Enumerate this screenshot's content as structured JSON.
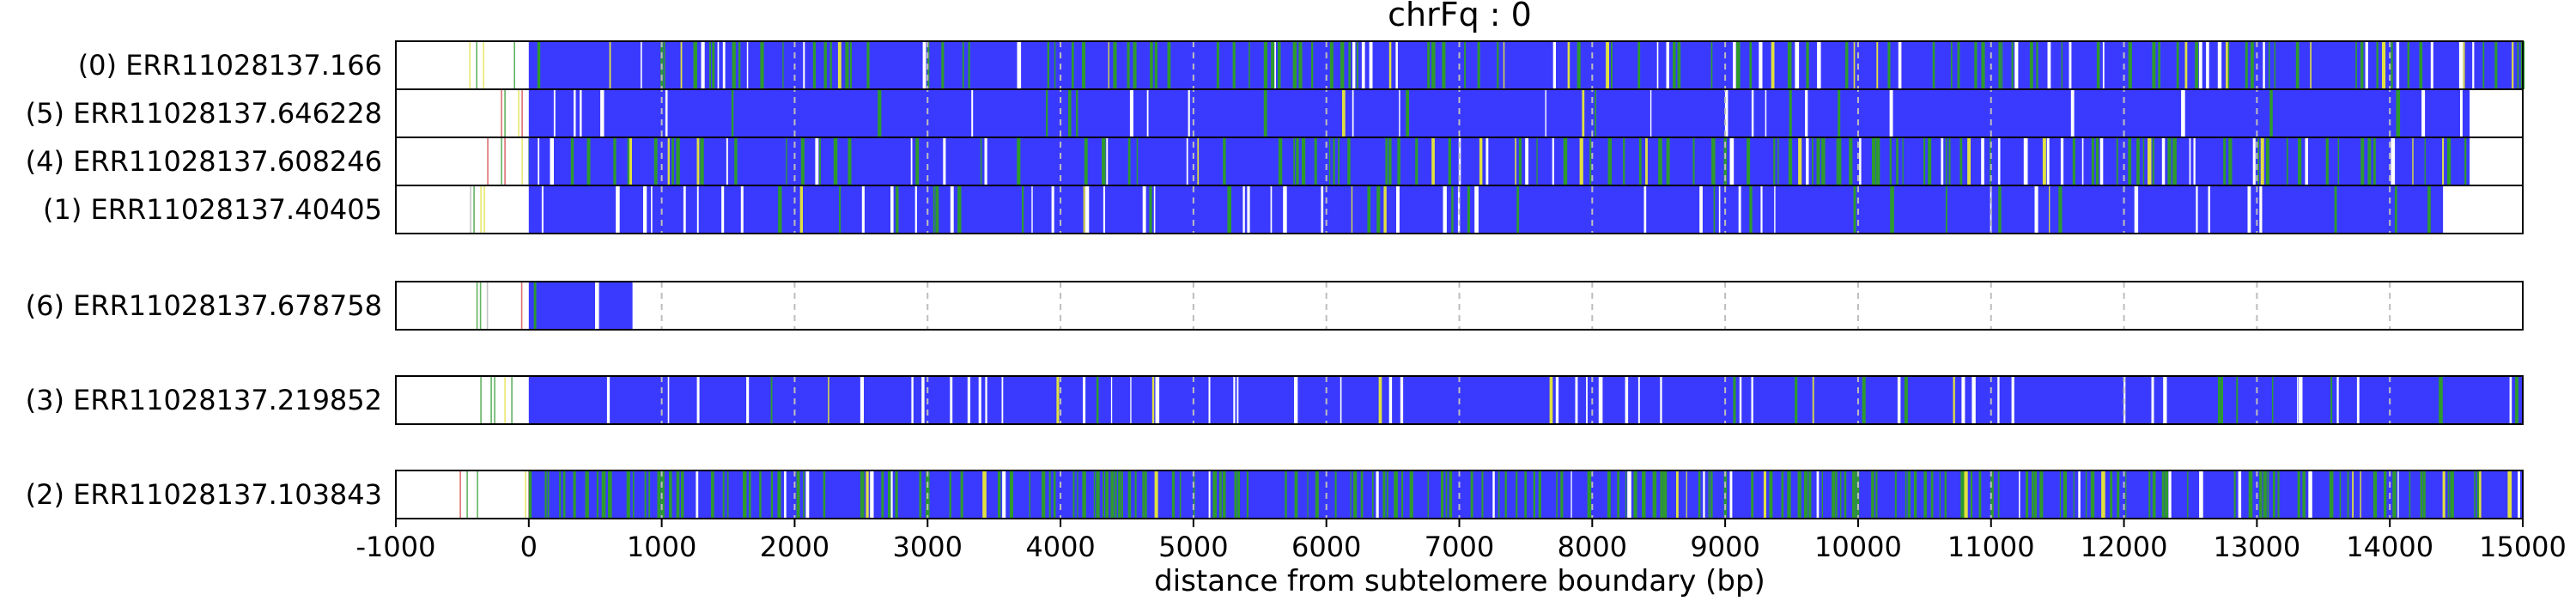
{
  "chart_data": {
    "type": "heatmap",
    "title": "chrFq : 0",
    "xlabel": "distance from subtelomere boundary (bp)",
    "xlim": [
      -1000,
      15000
    ],
    "xticks": [
      -1000,
      0,
      1000,
      2000,
      3000,
      4000,
      5000,
      6000,
      7000,
      8000,
      9000,
      10000,
      11000,
      12000,
      13000,
      14000,
      15000
    ],
    "grid": "vertical dashed at major ticks",
    "colors": {
      "primary": "#3a3aff",
      "secondary": "#2e9a2e",
      "tertiary": "#e0e040",
      "gap": "#ffffff",
      "accent": "#d04040"
    },
    "reads": [
      {
        "label": "(0) ERR11028137.166",
        "start": -500,
        "end": 15000,
        "pattern": "mixed",
        "group": 0
      },
      {
        "label": "(5) ERR11028137.646228",
        "start": -520,
        "end": 14600,
        "pattern": "blue",
        "group": 0
      },
      {
        "label": "(4) ERR11028137.608246",
        "start": -520,
        "end": 14600,
        "pattern": "mixed",
        "group": 0
      },
      {
        "label": "(1) ERR11028137.40405",
        "start": -520,
        "end": 14400,
        "pattern": "blue-white",
        "group": 0
      },
      {
        "label": "(6) ERR11028137.678758",
        "start": -420,
        "end": 780,
        "pattern": "blue",
        "group": 1
      },
      {
        "label": "(3) ERR11028137.219852",
        "start": -520,
        "end": 15000,
        "pattern": "blue-white",
        "group": 2
      },
      {
        "label": "(2) ERR11028137.103843",
        "start": -520,
        "end": 15000,
        "pattern": "green-heavy",
        "group": 3
      }
    ]
  }
}
